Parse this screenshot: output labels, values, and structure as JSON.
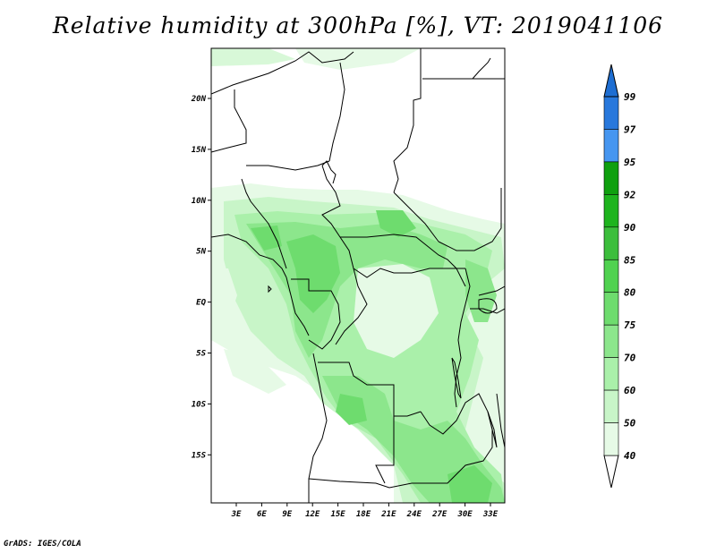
{
  "title": "Relative humidity at 300hPa [%], VT: 2019041106",
  "credit": "GrADS: IGES/COLA",
  "map": {
    "lat_labels": [
      "20N",
      "15N",
      "10N",
      "5N",
      "EQ",
      "5S",
      "10S",
      "15S"
    ],
    "lon_labels": [
      "3E",
      "6E",
      "9E",
      "12E",
      "15E",
      "18E",
      "21E",
      "24E",
      "27E",
      "30E",
      "33E"
    ]
  },
  "colorbar": {
    "labels": [
      "99",
      "97",
      "95",
      "92",
      "90",
      "85",
      "80",
      "75",
      "70",
      "60",
      "50",
      "40"
    ],
    "colors": [
      "#ffffff",
      "#e6fae6",
      "#c8f5c8",
      "#aaf0aa",
      "#8ce68c",
      "#6edc6e",
      "#50d250",
      "#3cbe3c",
      "#1eb41e",
      "#0fa00f",
      "#4696f0",
      "#2878dc",
      "#1e6ed2"
    ]
  }
}
